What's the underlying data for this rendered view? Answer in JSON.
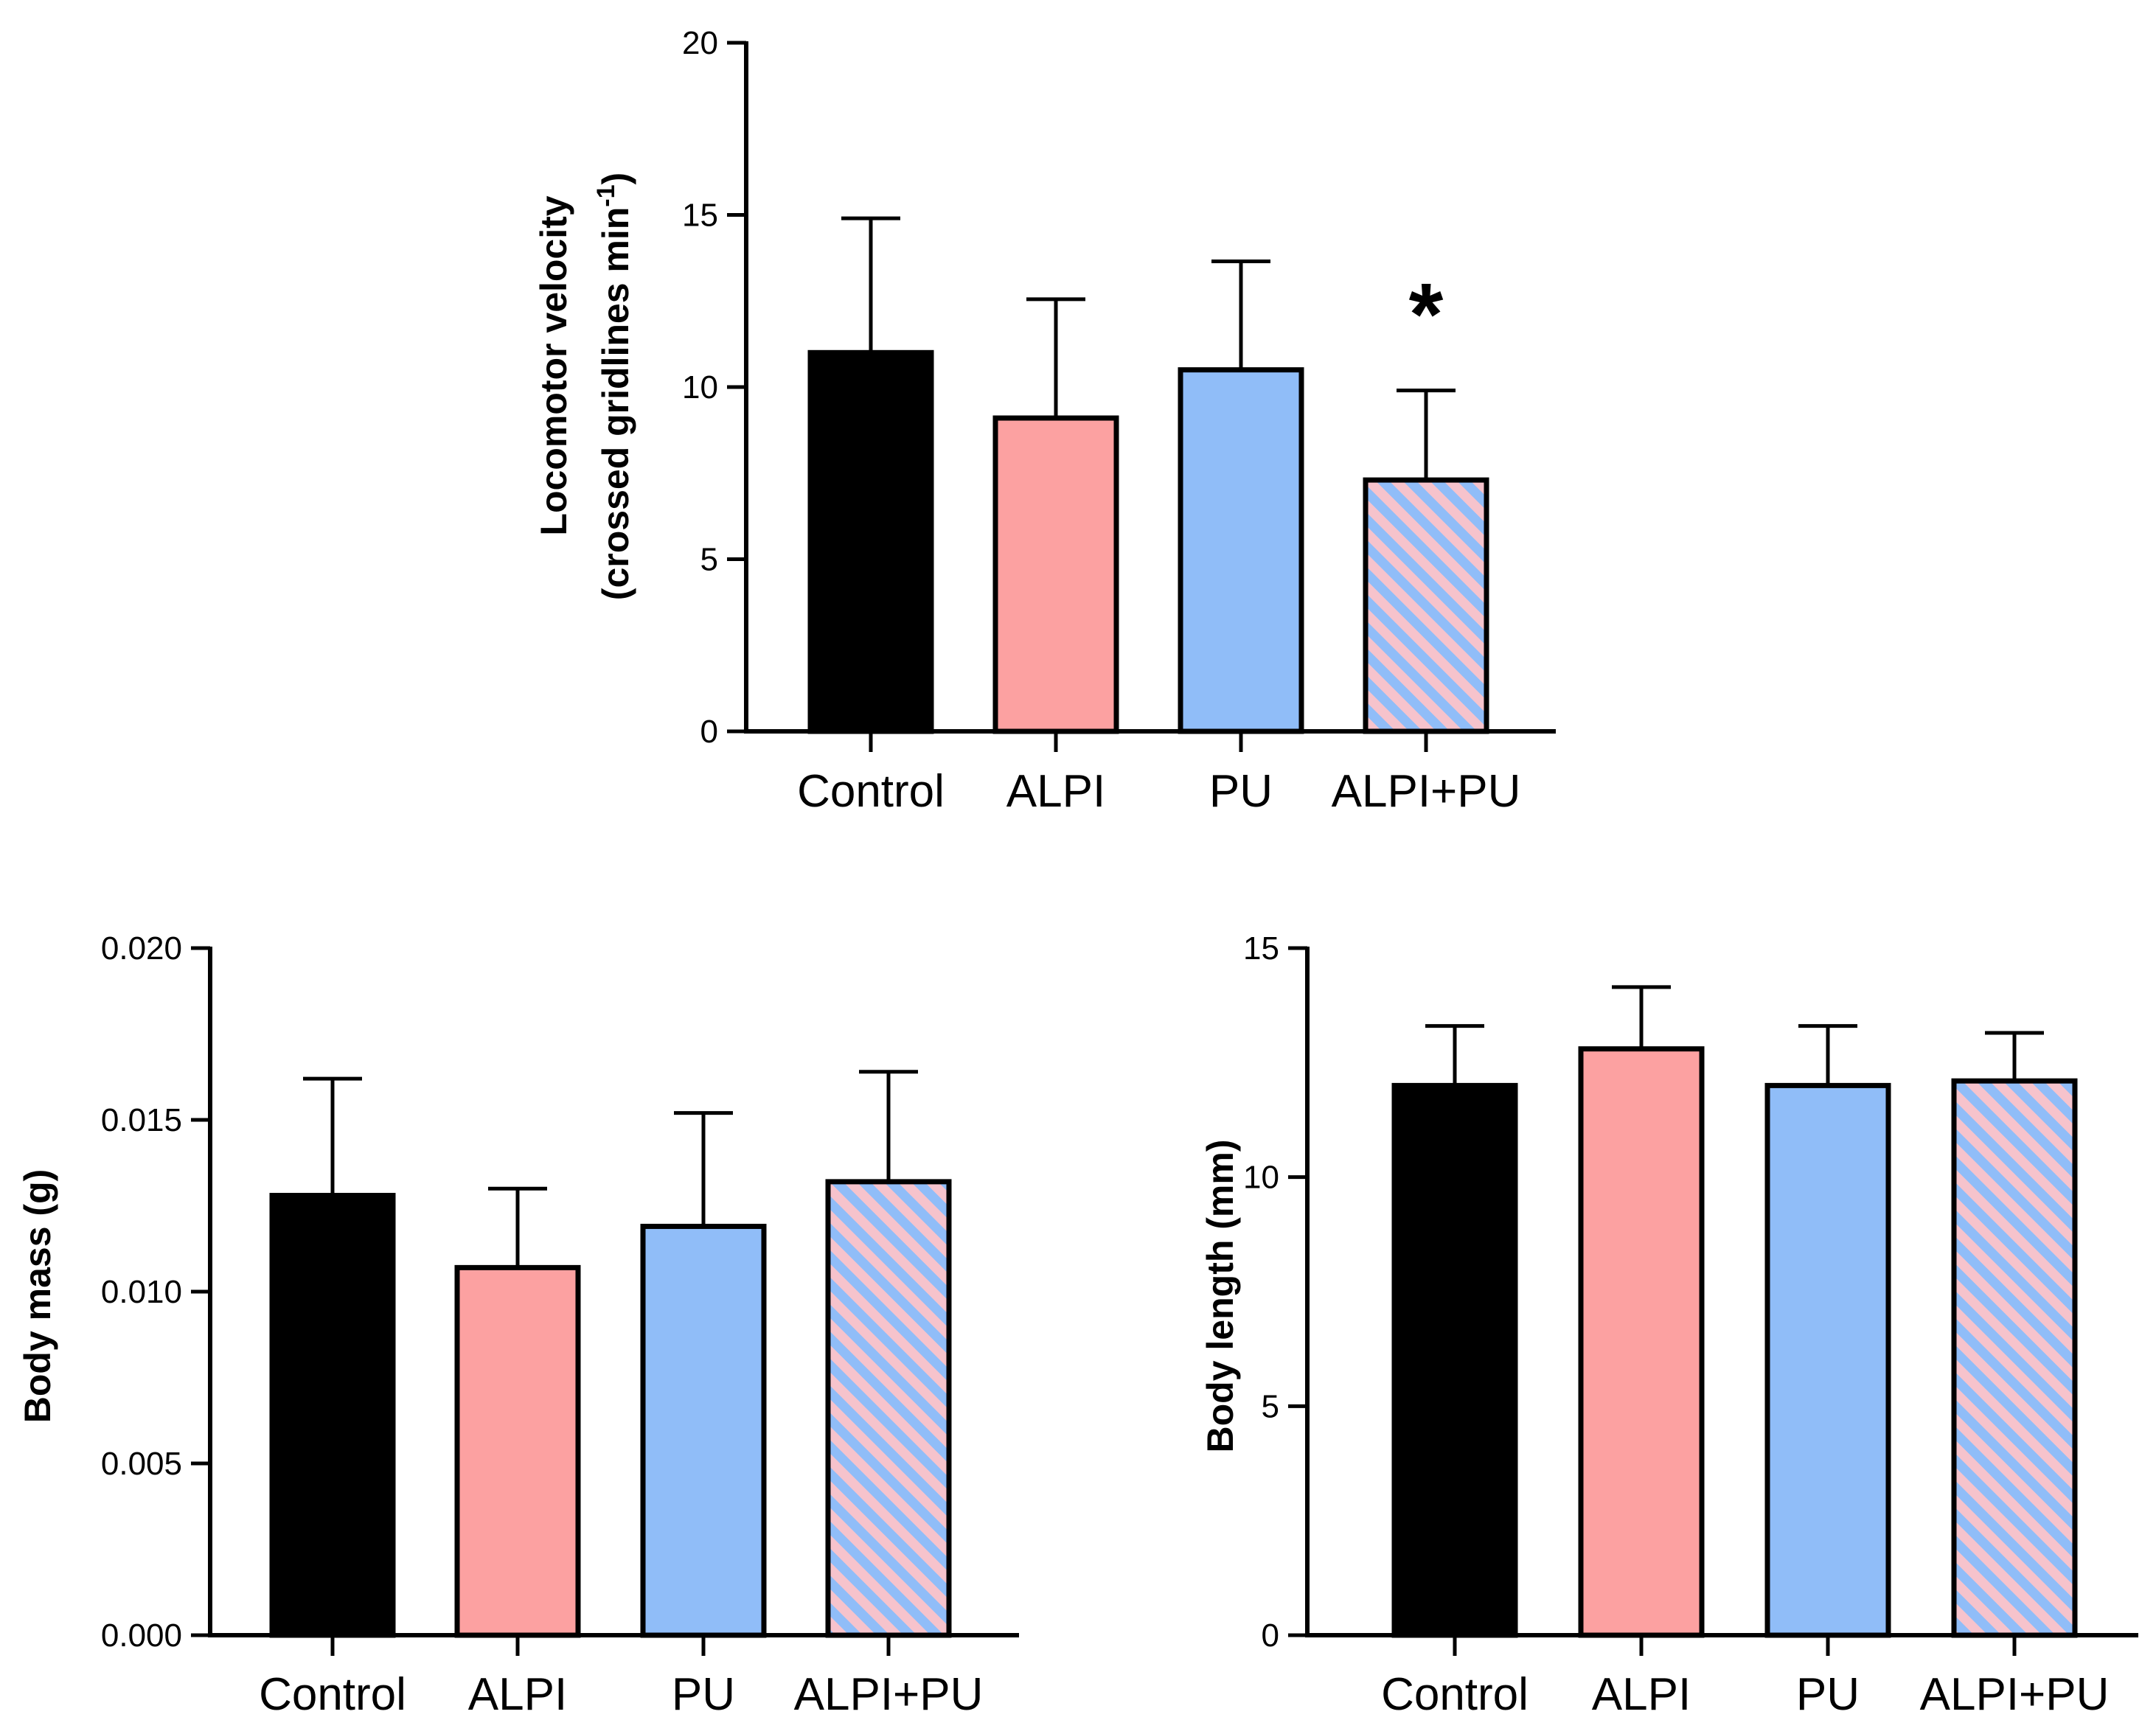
{
  "chart_data": [
    {
      "type": "bar",
      "title": "",
      "categories": [
        "Control",
        "ALPI",
        "PU",
        "ALPI+PU"
      ],
      "values": [
        11.0,
        9.1,
        10.5,
        7.3
      ],
      "errors": [
        3.9,
        3.45,
        3.15,
        2.6
      ],
      "fills": [
        "#000000",
        "#fca1a1",
        "#90bdf8",
        "hatched"
      ],
      "significance": [
        "",
        "",
        "",
        "*"
      ],
      "xlabel": "",
      "ylabel_line1": "Locomotor velocity",
      "ylabel_line2_prefix": "(crossed gridlines min",
      "ylabel_superscript": "-1",
      "ylabel_line2_suffix": ")",
      "ylim": [
        0,
        20
      ],
      "yticks": [
        0,
        5,
        10,
        15,
        20
      ],
      "ytick_labels": [
        "0",
        "5",
        "10",
        "15",
        "20"
      ]
    },
    {
      "type": "bar",
      "title": "",
      "categories": [
        "Control",
        "ALPI",
        "PU",
        "ALPI+PU"
      ],
      "values": [
        0.0128,
        0.0107,
        0.0119,
        0.0132
      ],
      "errors": [
        0.0034,
        0.0023,
        0.0033,
        0.0032
      ],
      "fills": [
        "#000000",
        "#fca1a1",
        "#90bdf8",
        "hatched"
      ],
      "xlabel": "",
      "ylabel": "Body mass (g)",
      "ylim": [
        0,
        0.02
      ],
      "yticks": [
        0,
        0.005,
        0.01,
        0.015,
        0.02
      ],
      "ytick_labels": [
        "0.000",
        "0.005",
        "0.010",
        "0.015",
        "0.020"
      ]
    },
    {
      "type": "bar",
      "title": "",
      "categories": [
        "Control",
        "ALPI",
        "PU",
        "ALPI+PU"
      ],
      "values": [
        12.0,
        12.8,
        12.0,
        12.1
      ],
      "errors": [
        1.3,
        1.35,
        1.3,
        1.05
      ],
      "fills": [
        "#000000",
        "#fca1a1",
        "#90bdf8",
        "hatched"
      ],
      "xlabel": "",
      "ylabel": "Body length (mm)",
      "ylim": [
        0,
        15
      ],
      "yticks": [
        0,
        5,
        10,
        15
      ],
      "ytick_labels": [
        "0",
        "5",
        "10",
        "15"
      ]
    }
  ],
  "colors": {
    "control": "#000000",
    "alpi": "#fca1a1",
    "pu": "#90bdf8",
    "hatch_pink": "#f6c3cc",
    "hatch_blue": "#90bdf8"
  }
}
